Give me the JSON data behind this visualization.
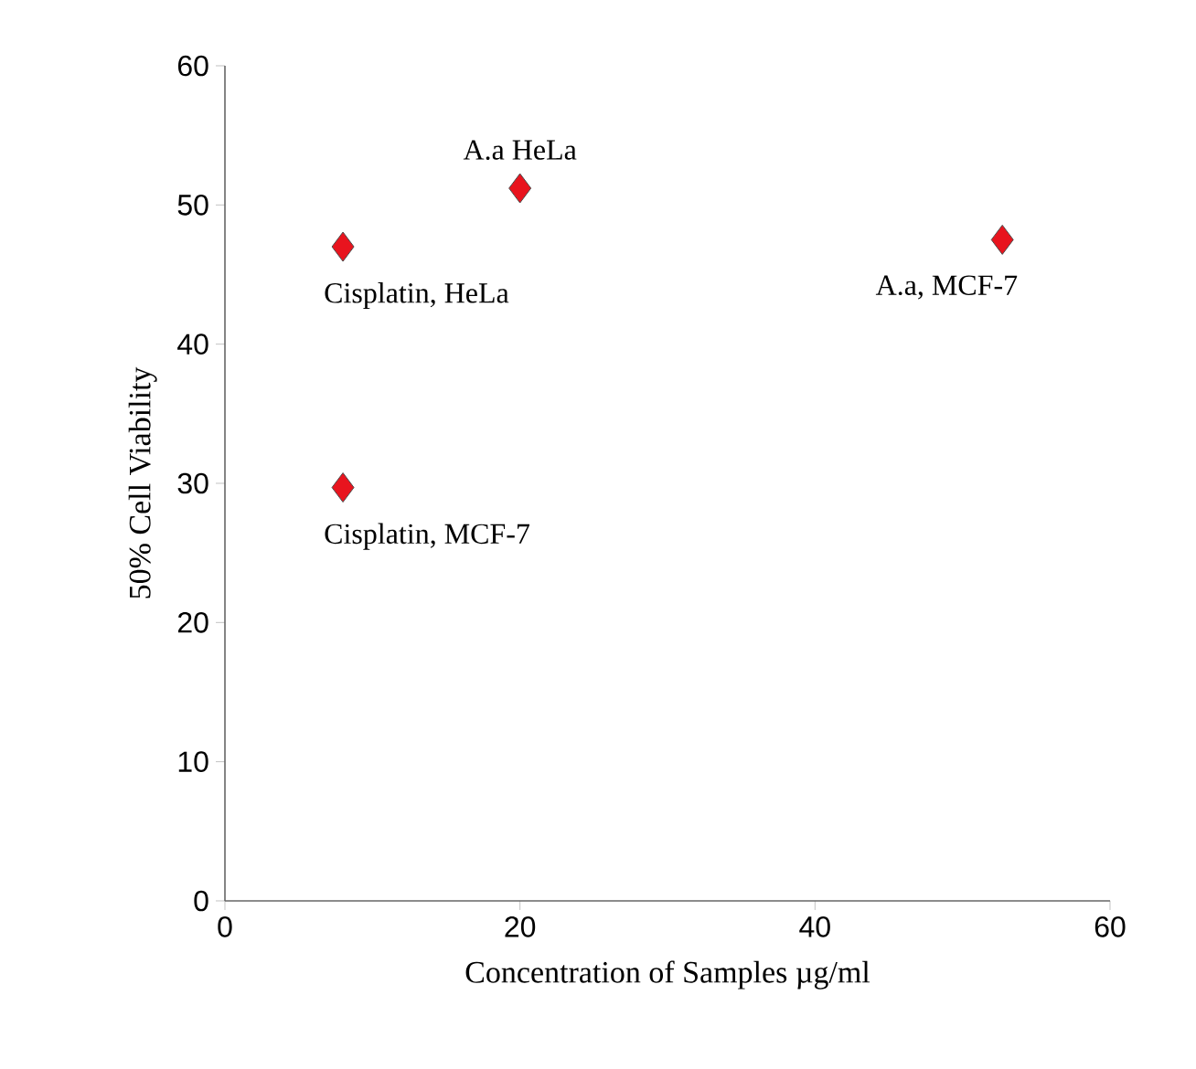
{
  "chart_data": {
    "type": "scatter",
    "xlabel": "Concentration of Samples µg/ml",
    "ylabel": "50% Cell Viability",
    "x": [
      8,
      8,
      20,
      52.7
    ],
    "values": [
      47,
      29.7,
      51.2,
      47.5
    ],
    "color": "#e8141e",
    "marker": "diamond",
    "xlim": [
      0,
      60
    ],
    "ylim": [
      0,
      60
    ],
    "xticks": [
      0,
      20,
      40,
      60
    ],
    "yticks": [
      0,
      10,
      20,
      30,
      40,
      50,
      60
    ],
    "grid": false,
    "annotations": [
      {
        "text": "Cisplatin, HeLa",
        "x": 8,
        "y": 47
      },
      {
        "text": "Cisplatin, MCF-7",
        "x": 8,
        "y": 29.7
      },
      {
        "text": "A.a HeLa",
        "x": 20,
        "y": 51.2
      },
      {
        "text": "A.a, MCF-7",
        "x": 52.7,
        "y": 47.5
      }
    ]
  }
}
